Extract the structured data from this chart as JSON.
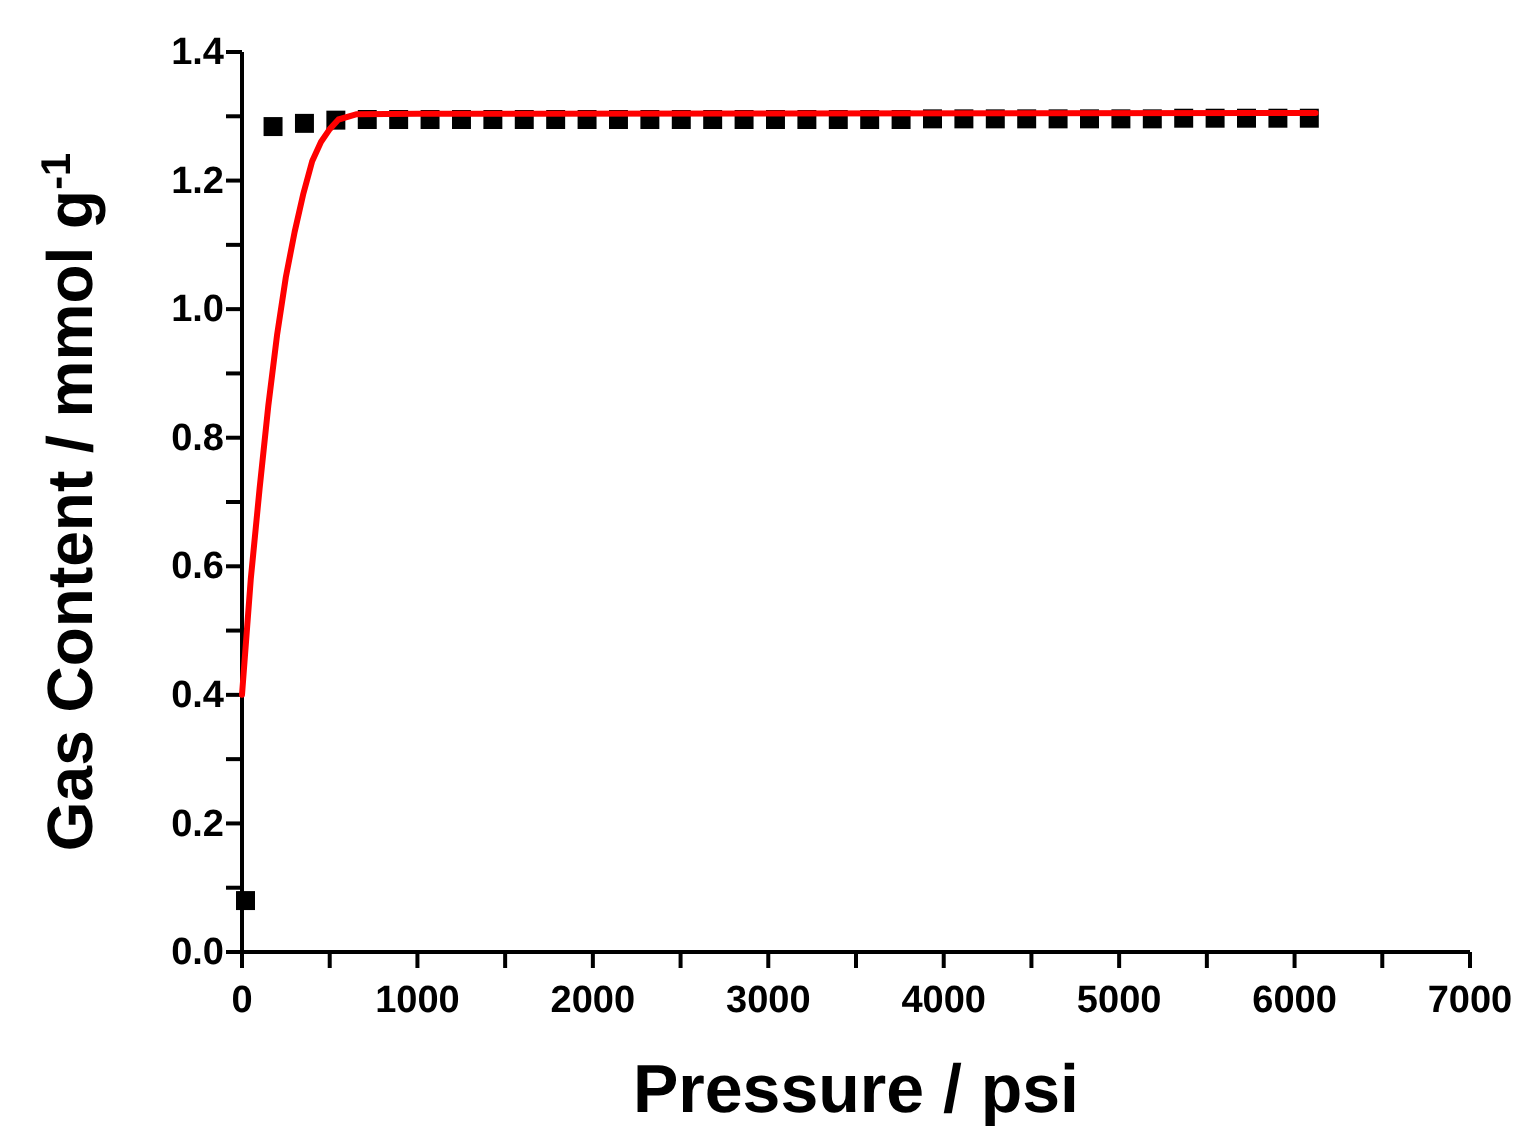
{
  "chart_data": {
    "type": "scatter",
    "xlabel": "Pressure / psi",
    "ylabel": "Gas Content / mmol g$^{-1}$",
    "xlim": [
      0,
      7000
    ],
    "ylim": [
      0,
      1.4
    ],
    "xticks": [
      0,
      {
        "value": 500,
        "label": null
      },
      1000,
      {
        "value": 1500,
        "label": null
      },
      2000,
      {
        "value": 2500,
        "label": null
      },
      3000,
      {
        "value": 3500,
        "label": null
      },
      4000,
      {
        "value": 4500,
        "label": null
      },
      5000,
      {
        "value": 5500,
        "label": null
      },
      6000,
      {
        "value": 6500,
        "label": null
      },
      7000
    ],
    "yticks": [
      {
        "value": 0,
        "label": "0.0"
      },
      {
        "value": 0.1,
        "label": null
      },
      0.2,
      {
        "value": 0.3,
        "label": null
      },
      0.4,
      {
        "value": 0.5,
        "label": null
      },
      0.6,
      {
        "value": 0.7,
        "label": null
      },
      0.8,
      {
        "value": 0.9,
        "label": null
      },
      {
        "value": 1,
        "label": "1.0"
      },
      {
        "value": 1.1,
        "label": null
      },
      1.2,
      {
        "value": 1.3,
        "label": null
      },
      1.4
    ],
    "grid": false,
    "series": [
      {
        "marker": "square",
        "color": "#000000",
        "x": [
          20,
          177,
          356,
          535,
          714,
          893,
          1072,
          1251,
          1430,
          1609,
          1788,
          1967,
          2146,
          2325,
          2504,
          2683,
          2862,
          3041,
          3220,
          3399,
          3578,
          3757,
          3936,
          4115,
          4294,
          4473,
          4652,
          4831,
          5010,
          5189,
          5368,
          5547,
          5726,
          5905,
          6084
        ],
        "values": [
          0.08,
          1.284,
          1.289,
          1.294,
          1.295,
          1.295,
          1.295,
          1.295,
          1.295,
          1.295,
          1.295,
          1.295,
          1.295,
          1.295,
          1.295,
          1.295,
          1.295,
          1.295,
          1.295,
          1.295,
          1.295,
          1.295,
          1.296,
          1.296,
          1.296,
          1.296,
          1.296,
          1.296,
          1.296,
          1.296,
          1.297,
          1.297,
          1.297,
          1.297,
          1.297
        ]
      },
      {
        "type": "line",
        "marker": "none",
        "line_style": "solid",
        "color": "#ff0000",
        "x": [
          0,
          50,
          100,
          150,
          200,
          250,
          300,
          350,
          400,
          450,
          500,
          550,
          650,
          1000,
          6120
        ],
        "values": [
          0.4,
          0.58,
          0.72,
          0.85,
          0.96,
          1.05,
          1.12,
          1.18,
          1.23,
          1.26,
          1.28,
          1.295,
          1.303,
          1.304,
          1.305
        ]
      }
    ]
  }
}
